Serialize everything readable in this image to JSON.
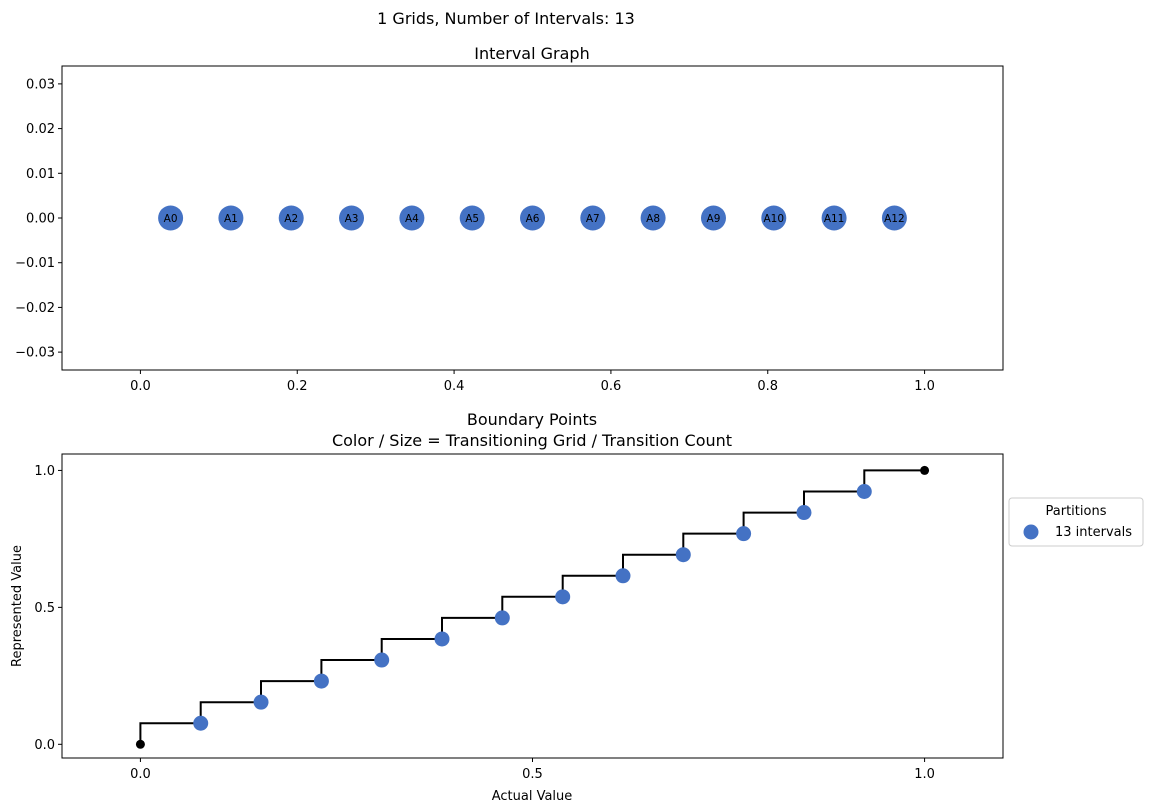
{
  "figure_title": "1 Grids, Number of Intervals: 13",
  "chart_data": [
    {
      "type": "scatter",
      "title": "Interval Graph",
      "xlabel": "",
      "ylabel": "",
      "xlim": [
        -0.1,
        1.1
      ],
      "ylim": [
        -0.034,
        0.034
      ],
      "xticks": [
        "0.0",
        "0.2",
        "0.4",
        "0.6",
        "0.8",
        "1.0"
      ],
      "yticks": [
        "0.03",
        "0.02",
        "0.01",
        "0.00",
        "−0.01",
        "−0.02",
        "−0.03"
      ],
      "grid": false,
      "node_color": "#4472c4",
      "nodes": [
        {
          "label": "A0",
          "x": 0.0385,
          "y": 0
        },
        {
          "label": "A1",
          "x": 0.1154,
          "y": 0
        },
        {
          "label": "A2",
          "x": 0.1923,
          "y": 0
        },
        {
          "label": "A3",
          "x": 0.2692,
          "y": 0
        },
        {
          "label": "A4",
          "x": 0.3462,
          "y": 0
        },
        {
          "label": "A5",
          "x": 0.4231,
          "y": 0
        },
        {
          "label": "A6",
          "x": 0.5,
          "y": 0
        },
        {
          "label": "A7",
          "x": 0.5769,
          "y": 0
        },
        {
          "label": "A8",
          "x": 0.6538,
          "y": 0
        },
        {
          "label": "A9",
          "x": 0.7308,
          "y": 0
        },
        {
          "label": "A10",
          "x": 0.8077,
          "y": 0
        },
        {
          "label": "A11",
          "x": 0.8846,
          "y": 0
        },
        {
          "label": "A12",
          "x": 0.9615,
          "y": 0
        }
      ]
    },
    {
      "type": "line",
      "title": "Boundary Points",
      "subtitle": "Color / Size = Transitioning Grid / Transition Count",
      "xlabel": "Actual Value",
      "ylabel": "Represented Value",
      "xlim": [
        -0.1,
        1.1
      ],
      "ylim": [
        -0.05,
        1.06
      ],
      "xticks": [
        "0.0",
        "0.5",
        "1.0"
      ],
      "yticks": [
        "1.0",
        "0.5",
        "0.0"
      ],
      "grid": false,
      "legend": {
        "title": "Partitions",
        "placement": "right",
        "entries": [
          "13 intervals"
        ]
      },
      "step_color": "#000000",
      "point_color": "#4472c4",
      "step_points": [
        [
          0.0,
          0.0
        ],
        [
          0.0,
          0.0769
        ],
        [
          0.0769,
          0.0769
        ],
        [
          0.0769,
          0.1538
        ],
        [
          0.1538,
          0.1538
        ],
        [
          0.1538,
          0.2308
        ],
        [
          0.2308,
          0.2308
        ],
        [
          0.2308,
          0.3077
        ],
        [
          0.3077,
          0.3077
        ],
        [
          0.3077,
          0.3846
        ],
        [
          0.3846,
          0.3846
        ],
        [
          0.3846,
          0.4615
        ],
        [
          0.4615,
          0.4615
        ],
        [
          0.4615,
          0.5385
        ],
        [
          0.5385,
          0.5385
        ],
        [
          0.5385,
          0.6154
        ],
        [
          0.6154,
          0.6154
        ],
        [
          0.6154,
          0.6923
        ],
        [
          0.6923,
          0.6923
        ],
        [
          0.6923,
          0.7692
        ],
        [
          0.7692,
          0.7692
        ],
        [
          0.7692,
          0.8462
        ],
        [
          0.8462,
          0.8462
        ],
        [
          0.8462,
          0.9231
        ],
        [
          0.9231,
          0.9231
        ],
        [
          0.9231,
          1.0
        ],
        [
          1.0,
          1.0
        ]
      ],
      "endpoints": [
        [
          0.0,
          0.0
        ],
        [
          1.0,
          1.0
        ]
      ],
      "boundary_points": [
        {
          "x": 0.0769,
          "y": 0.0769
        },
        {
          "x": 0.1538,
          "y": 0.1538
        },
        {
          "x": 0.2308,
          "y": 0.2308
        },
        {
          "x": 0.3077,
          "y": 0.3077
        },
        {
          "x": 0.3846,
          "y": 0.3846
        },
        {
          "x": 0.4615,
          "y": 0.4615
        },
        {
          "x": 0.5385,
          "y": 0.5385
        },
        {
          "x": 0.6154,
          "y": 0.6154
        },
        {
          "x": 0.6923,
          "y": 0.6923
        },
        {
          "x": 0.7692,
          "y": 0.7692
        },
        {
          "x": 0.8462,
          "y": 0.8462
        },
        {
          "x": 0.9231,
          "y": 0.9231
        }
      ]
    }
  ]
}
